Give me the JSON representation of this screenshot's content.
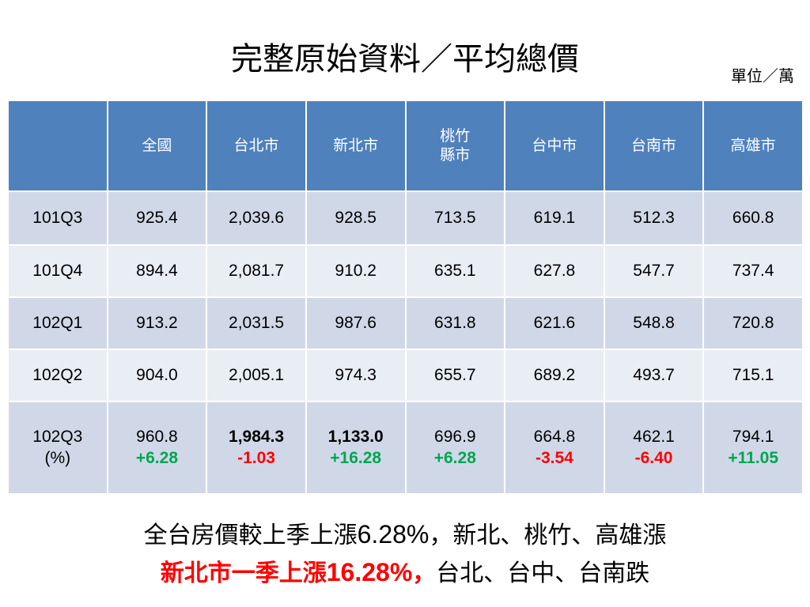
{
  "title": "完整原始資料／平均總價",
  "unit": "單位／萬",
  "table": {
    "header": [
      [
        ""
      ],
      [
        "全國"
      ],
      [
        "台北市"
      ],
      [
        "新北市"
      ],
      [
        "桃竹",
        "縣市"
      ],
      [
        "台中市"
      ],
      [
        "台南市"
      ],
      [
        "高雄市"
      ]
    ],
    "rows": [
      [
        "101Q3",
        "925.4",
        "2,039.6",
        "928.5",
        "713.5",
        "619.1",
        "512.3",
        "660.8"
      ],
      [
        "101Q4",
        "894.4",
        "2,081.7",
        "910.2",
        "635.1",
        "627.8",
        "547.7",
        "737.4"
      ],
      [
        "102Q1",
        "913.2",
        "2,031.5",
        "987.6",
        "631.8",
        "621.6",
        "548.8",
        "720.8"
      ],
      [
        "102Q2",
        "904.0",
        "2,005.1",
        "974.3",
        "655.7",
        "689.2",
        "493.7",
        "715.1"
      ]
    ],
    "last_row": {
      "label": [
        "102Q3",
        "(%)"
      ],
      "cells": [
        {
          "value": "960.8",
          "change": "+6.28",
          "color": "#00a650",
          "bold": false
        },
        {
          "value": "1,984.3",
          "change": "-1.03",
          "color": "#ff0000",
          "bold": true
        },
        {
          "value": "1,133.0",
          "change": "+16.28",
          "color": "#00a650",
          "bold": true
        },
        {
          "value": "696.9",
          "change": "+6.28",
          "color": "#00a650",
          "bold": false
        },
        {
          "value": "664.8",
          "change": "-3.54",
          "color": "#ff0000",
          "bold": false
        },
        {
          "value": "462.1",
          "change": "-6.40",
          "color": "#ff0000",
          "bold": false
        },
        {
          "value": "794.1",
          "change": "+11.05",
          "color": "#00a650",
          "bold": false
        }
      ]
    }
  },
  "footer": [
    [
      {
        "text": "全台房價較上季上漲",
        "color": "#000000",
        "bold": false
      },
      {
        "text": "6.28%",
        "color": "#000000",
        "bold": false,
        "num": true
      },
      {
        "text": "，新北、桃竹、高雄漲",
        "color": "#000000",
        "bold": false
      }
    ],
    [
      {
        "text": "新北市一季上漲",
        "color": "#ff0000",
        "bold": true
      },
      {
        "text": "16.28%",
        "color": "#ff0000",
        "bold": true,
        "num": true
      },
      {
        "text": "，",
        "color": "#ff0000",
        "bold": true
      },
      {
        "text": "台北、台中、台南跌",
        "color": "#000000",
        "bold": false
      }
    ]
  ]
}
